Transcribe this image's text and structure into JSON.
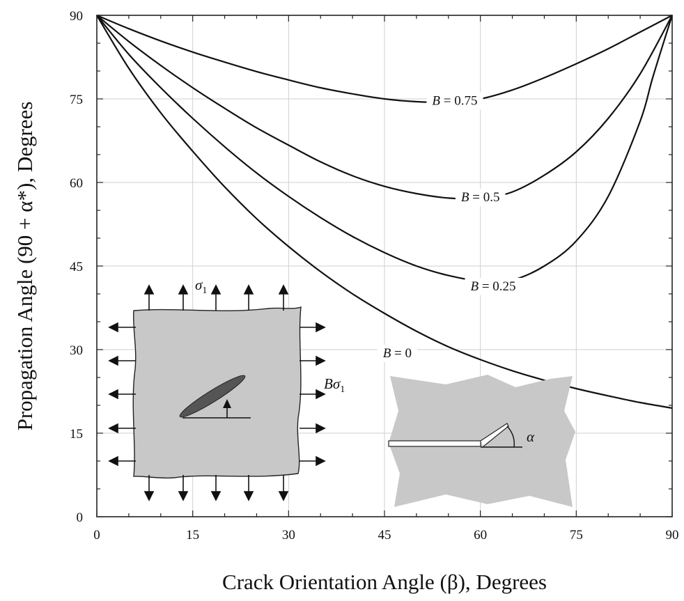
{
  "chart_data": {
    "type": "line",
    "xlabel": "Crack Orientation Angle (β), Degrees",
    "ylabel": "Propagation Angle (90 + α*), Degrees",
    "xlim": [
      0,
      90
    ],
    "ylim": [
      0,
      90
    ],
    "xticks": [
      "0",
      "15",
      "30",
      "45",
      "60",
      "75",
      "90"
    ],
    "yticks": [
      "0",
      "15",
      "30",
      "45",
      "60",
      "75",
      "90"
    ],
    "grid": true,
    "series": [
      {
        "name": "B = 0",
        "label": "B = 0",
        "x": [
          0,
          5,
          10,
          15,
          20,
          25,
          30,
          35,
          40,
          45,
          50,
          55,
          60,
          65,
          70,
          75,
          80,
          85,
          90
        ],
        "y": [
          90,
          80.5,
          72.5,
          65.6,
          59.2,
          53.5,
          48.5,
          44,
          40,
          36.5,
          33.3,
          30.5,
          28.2,
          26.2,
          24.5,
          23,
          21.7,
          20.5,
          19.5
        ]
      },
      {
        "name": "B = 0.25",
        "label": "B = 0.25",
        "x": [
          0,
          5,
          10,
          15,
          20,
          25,
          30,
          35,
          40,
          45,
          50,
          55,
          60,
          65,
          70,
          75,
          80,
          85,
          87,
          90
        ],
        "y": [
          90,
          83,
          77,
          71.5,
          66.4,
          61.7,
          57.5,
          53.7,
          50.3,
          47.4,
          45,
          43.3,
          42.3,
          42.5,
          45,
          49.5,
          57.5,
          71,
          79,
          90
        ]
      },
      {
        "name": "B = 0.5",
        "label": "B = 0.5",
        "x": [
          0,
          5,
          10,
          15,
          20,
          25,
          30,
          35,
          40,
          45,
          50,
          55,
          60,
          65,
          70,
          75,
          80,
          85,
          90
        ],
        "y": [
          90,
          85.3,
          81,
          77,
          73.3,
          69.8,
          66.7,
          63.7,
          61.2,
          59.3,
          58,
          57.2,
          57.1,
          58.3,
          61.3,
          65.5,
          71.5,
          79.5,
          90
        ]
      },
      {
        "name": "B = 0.75",
        "label": "B = 0.75",
        "x": [
          0,
          5,
          10,
          15,
          20,
          25,
          30,
          35,
          40,
          45,
          50,
          55,
          60,
          65,
          70,
          75,
          80,
          85,
          90
        ],
        "y": [
          90,
          87.6,
          85.4,
          83.4,
          81.6,
          79.9,
          78.4,
          77,
          75.9,
          75,
          74.5,
          74.4,
          75,
          76.6,
          78.8,
          81.3,
          84,
          87,
          90
        ]
      }
    ]
  },
  "insets": {
    "stress_label": "σ",
    "stress_subscript": "1",
    "lateral_label_prefix": "B",
    "lateral_label_sigma": "σ",
    "lateral_label_subscript": "1",
    "angle_label": "α"
  }
}
